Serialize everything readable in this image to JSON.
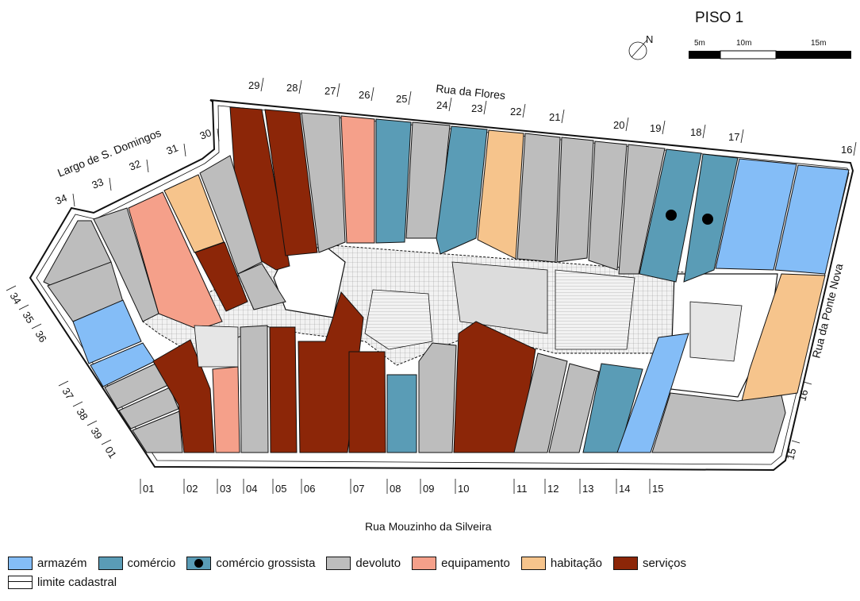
{
  "title": "PISO 1",
  "north_label": "N",
  "scale_labels": [
    "5m",
    "10m",
    "15m"
  ],
  "streets": {
    "top": "Rua da Flores",
    "left": "Largo de S. Domingos",
    "right": "Rua da Ponte Nova",
    "bottom": "Rua Mouzinho da Silveira"
  },
  "colors": {
    "armazem": "#84bdf7",
    "comercio": "#5a9cb6",
    "devoluto": "#bdbdbd",
    "equipamento": "#f5a08a",
    "habitacao": "#f6c48c",
    "servicos": "#8c2608",
    "courtyard": "#e6e6e6",
    "outline": "#111111"
  },
  "top_numbers": [
    "29",
    "28",
    "27",
    "26",
    "25",
    "24",
    "23",
    "22",
    "21",
    "20",
    "19",
    "18",
    "17",
    "16"
  ],
  "left_top_numbers": [
    "34",
    "33",
    "32",
    "31",
    "30"
  ],
  "left_side_numbers": [
    "34",
    "35",
    "36",
    "37",
    "38",
    "39",
    "01"
  ],
  "bottom_numbers": [
    "01",
    "02",
    "03",
    "04",
    "05",
    "06",
    "07",
    "08",
    "09",
    "10",
    "11",
    "12",
    "13",
    "14",
    "15"
  ],
  "right_numbers": [
    "16",
    "15"
  ],
  "legend": [
    {
      "key": "armazem",
      "label": "armazém",
      "color": "#84bdf7"
    },
    {
      "key": "comercio",
      "label": "comércio",
      "color": "#5a9cb6"
    },
    {
      "key": "comercio_grossista",
      "label": "comércio grossista",
      "color": "#5a9cb6",
      "dot": true
    },
    {
      "key": "devoluto",
      "label": "devoluto",
      "color": "#bdbdbd"
    },
    {
      "key": "equipamento",
      "label": "equipamento",
      "color": "#f5a08a"
    },
    {
      "key": "habitacao",
      "label": "habitação",
      "color": "#f6c48c"
    },
    {
      "key": "servicos",
      "label": "serviços",
      "color": "#8c2608"
    }
  ],
  "legend_cadastral": "limite cadastral"
}
